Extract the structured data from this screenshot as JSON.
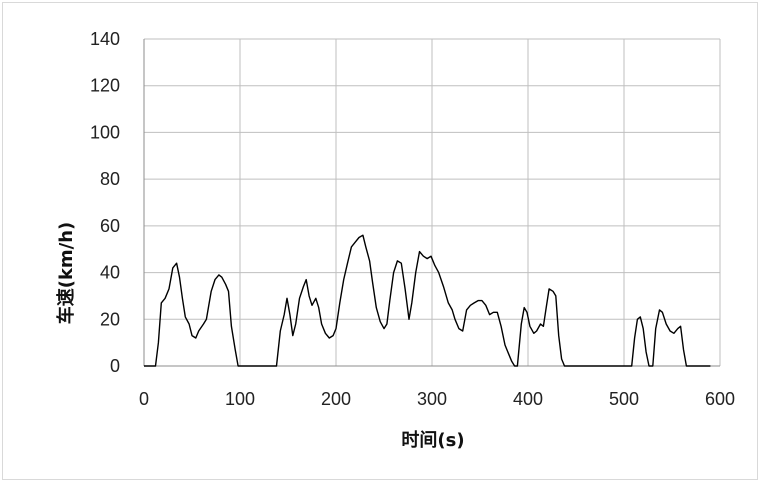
{
  "chart_data": {
    "type": "line",
    "title": "",
    "xlabel": "时间(s)",
    "ylabel": "车速(km/h)",
    "xlim": [
      0,
      600
    ],
    "ylim": [
      0,
      140
    ],
    "x_ticks": [
      0,
      100,
      200,
      300,
      400,
      500,
      600
    ],
    "y_ticks": [
      0,
      20,
      40,
      60,
      80,
      100,
      120,
      140
    ],
    "grid": true,
    "legend": "none",
    "series": [
      {
        "color": "#000000",
        "points": [
          [
            0,
            0
          ],
          [
            12,
            0
          ],
          [
            15,
            10
          ],
          [
            18,
            27
          ],
          [
            22,
            29
          ],
          [
            26,
            33
          ],
          [
            30,
            42
          ],
          [
            34,
            44
          ],
          [
            37,
            38
          ],
          [
            40,
            29
          ],
          [
            43,
            21
          ],
          [
            47,
            18
          ],
          [
            50,
            13
          ],
          [
            54,
            12
          ],
          [
            57,
            15
          ],
          [
            62,
            18
          ],
          [
            65,
            20
          ],
          [
            70,
            32
          ],
          [
            74,
            37
          ],
          [
            78,
            39
          ],
          [
            81,
            38
          ],
          [
            85,
            35
          ],
          [
            88,
            32
          ],
          [
            91,
            17
          ],
          [
            95,
            7
          ],
          [
            98,
            0
          ],
          [
            138,
            0
          ],
          [
            142,
            15
          ],
          [
            146,
            22
          ],
          [
            149,
            29
          ],
          [
            152,
            22
          ],
          [
            155,
            13
          ],
          [
            158,
            18
          ],
          [
            162,
            29
          ],
          [
            166,
            34
          ],
          [
            169,
            37
          ],
          [
            172,
            30
          ],
          [
            175,
            26
          ],
          [
            179,
            29
          ],
          [
            182,
            25
          ],
          [
            185,
            18
          ],
          [
            189,
            14
          ],
          [
            193,
            12
          ],
          [
            197,
            13
          ],
          [
            200,
            16
          ],
          [
            204,
            27
          ],
          [
            208,
            37
          ],
          [
            212,
            44
          ],
          [
            216,
            51
          ],
          [
            220,
            53
          ],
          [
            224,
            55
          ],
          [
            228,
            56
          ],
          [
            231,
            51
          ],
          [
            235,
            45
          ],
          [
            238,
            36
          ],
          [
            242,
            25
          ],
          [
            246,
            19
          ],
          [
            250,
            16
          ],
          [
            253,
            18
          ],
          [
            256,
            28
          ],
          [
            260,
            40
          ],
          [
            264,
            45
          ],
          [
            268,
            44
          ],
          [
            272,
            33
          ],
          [
            276,
            20
          ],
          [
            279,
            27
          ],
          [
            283,
            40
          ],
          [
            287,
            49
          ],
          [
            291,
            47
          ],
          [
            295,
            46
          ],
          [
            299,
            47
          ],
          [
            303,
            43
          ],
          [
            307,
            40
          ],
          [
            312,
            34
          ],
          [
            317,
            27
          ],
          [
            321,
            24
          ],
          [
            324,
            20
          ],
          [
            328,
            16
          ],
          [
            332,
            15
          ],
          [
            336,
            24
          ],
          [
            340,
            26
          ],
          [
            344,
            27
          ],
          [
            348,
            28
          ],
          [
            352,
            28
          ],
          [
            356,
            26
          ],
          [
            360,
            22
          ],
          [
            364,
            23
          ],
          [
            368,
            23
          ],
          [
            372,
            17
          ],
          [
            376,
            9
          ],
          [
            380,
            5
          ],
          [
            383,
            2
          ],
          [
            386,
            0
          ],
          [
            389,
            0
          ],
          [
            393,
            18
          ],
          [
            396,
            25
          ],
          [
            399,
            23
          ],
          [
            402,
            17
          ],
          [
            406,
            14
          ],
          [
            409,
            15
          ],
          [
            413,
            18
          ],
          [
            416,
            17
          ],
          [
            419,
            25
          ],
          [
            422,
            33
          ],
          [
            426,
            32
          ],
          [
            429,
            30
          ],
          [
            432,
            13
          ],
          [
            435,
            3
          ],
          [
            438,
            0
          ],
          [
            508,
            0
          ],
          [
            511,
            12
          ],
          [
            514,
            20
          ],
          [
            517,
            21
          ],
          [
            520,
            16
          ],
          [
            523,
            6
          ],
          [
            526,
            0
          ],
          [
            530,
            0
          ],
          [
            533,
            16
          ],
          [
            537,
            24
          ],
          [
            540,
            23
          ],
          [
            544,
            18
          ],
          [
            548,
            15
          ],
          [
            552,
            14
          ],
          [
            556,
            16
          ],
          [
            559,
            17
          ],
          [
            562,
            7
          ],
          [
            565,
            0
          ],
          [
            590,
            0
          ]
        ]
      }
    ]
  }
}
